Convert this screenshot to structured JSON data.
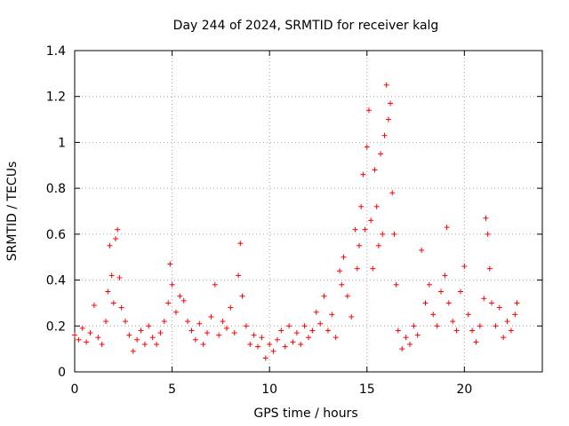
{
  "chart_data": {
    "type": "scatter",
    "title": "Day 244 of 2024, SRMTID for receiver kalg",
    "xlabel": "GPS time / hours",
    "ylabel": "SRMTID / TECUs",
    "xlim": [
      0,
      24
    ],
    "ylim": [
      0,
      1.4
    ],
    "x_ticks": [
      0,
      5,
      10,
      15,
      20
    ],
    "x_tick_labels": [
      "0",
      "5",
      "10",
      "15",
      "20"
    ],
    "y_ticks": [
      0,
      0.2,
      0.4,
      0.6,
      0.8,
      1.0,
      1.2,
      1.4
    ],
    "y_tick_labels": [
      "0",
      "0.2",
      "0.4",
      "0.6",
      "0.8",
      "1",
      "1.2",
      "1.4"
    ],
    "grid": true,
    "marker": "+",
    "series_color": "#ff0000",
    "series": [
      {
        "name": "SRMTID",
        "x": [
          0.0,
          0.2,
          0.4,
          0.6,
          0.8,
          1.0,
          1.2,
          1.4,
          1.6,
          1.7,
          1.8,
          1.9,
          2.0,
          2.1,
          2.2,
          2.3,
          2.4,
          2.6,
          2.8,
          3.0,
          3.2,
          3.4,
          3.6,
          3.8,
          4.0,
          4.2,
          4.4,
          4.6,
          4.8,
          4.9,
          5.0,
          5.2,
          5.4,
          5.6,
          5.8,
          6.0,
          6.2,
          6.4,
          6.6,
          6.8,
          7.0,
          7.2,
          7.4,
          7.6,
          7.8,
          8.0,
          8.2,
          8.4,
          8.5,
          8.6,
          8.8,
          9.0,
          9.2,
          9.4,
          9.6,
          9.8,
          10.0,
          10.2,
          10.4,
          10.6,
          10.8,
          11.0,
          11.2,
          11.4,
          11.6,
          11.8,
          12.0,
          12.2,
          12.4,
          12.6,
          12.8,
          13.0,
          13.2,
          13.4,
          13.6,
          13.7,
          13.8,
          14.0,
          14.2,
          14.4,
          14.5,
          14.6,
          14.7,
          14.8,
          14.9,
          15.0,
          15.1,
          15.2,
          15.3,
          15.4,
          15.5,
          15.6,
          15.7,
          15.8,
          15.9,
          16.0,
          16.1,
          16.2,
          16.3,
          16.4,
          16.5,
          16.6,
          16.8,
          17.0,
          17.2,
          17.4,
          17.6,
          17.8,
          18.0,
          18.2,
          18.4,
          18.6,
          18.8,
          19.0,
          19.1,
          19.2,
          19.4,
          19.6,
          19.8,
          20.0,
          20.2,
          20.4,
          20.6,
          20.8,
          21.0,
          21.1,
          21.2,
          21.3,
          21.4,
          21.6,
          21.8,
          22.0,
          22.2,
          22.4,
          22.6,
          22.7
        ],
        "y": [
          0.16,
          0.14,
          0.19,
          0.13,
          0.17,
          0.29,
          0.15,
          0.12,
          0.22,
          0.35,
          0.55,
          0.42,
          0.3,
          0.58,
          0.62,
          0.41,
          0.28,
          0.22,
          0.16,
          0.09,
          0.14,
          0.18,
          0.12,
          0.2,
          0.15,
          0.12,
          0.17,
          0.22,
          0.3,
          0.47,
          0.38,
          0.26,
          0.33,
          0.31,
          0.22,
          0.18,
          0.14,
          0.21,
          0.12,
          0.17,
          0.24,
          0.38,
          0.16,
          0.22,
          0.19,
          0.28,
          0.17,
          0.42,
          0.56,
          0.33,
          0.2,
          0.12,
          0.16,
          0.11,
          0.15,
          0.06,
          0.12,
          0.09,
          0.14,
          0.18,
          0.11,
          0.2,
          0.13,
          0.17,
          0.12,
          0.2,
          0.15,
          0.18,
          0.26,
          0.21,
          0.33,
          0.18,
          0.25,
          0.15,
          0.44,
          0.38,
          0.5,
          0.33,
          0.24,
          0.62,
          0.45,
          0.55,
          0.72,
          0.86,
          0.62,
          0.98,
          1.14,
          0.66,
          0.45,
          0.88,
          0.72,
          0.55,
          0.95,
          0.6,
          1.03,
          1.25,
          1.1,
          1.17,
          0.78,
          0.6,
          0.38,
          0.18,
          0.1,
          0.15,
          0.12,
          0.2,
          0.16,
          0.53,
          0.3,
          0.38,
          0.25,
          0.2,
          0.35,
          0.42,
          0.63,
          0.3,
          0.22,
          0.18,
          0.35,
          0.46,
          0.25,
          0.18,
          0.13,
          0.2,
          0.32,
          0.67,
          0.6,
          0.45,
          0.3,
          0.2,
          0.28,
          0.15,
          0.22,
          0.18,
          0.25,
          0.3
        ]
      }
    ]
  }
}
